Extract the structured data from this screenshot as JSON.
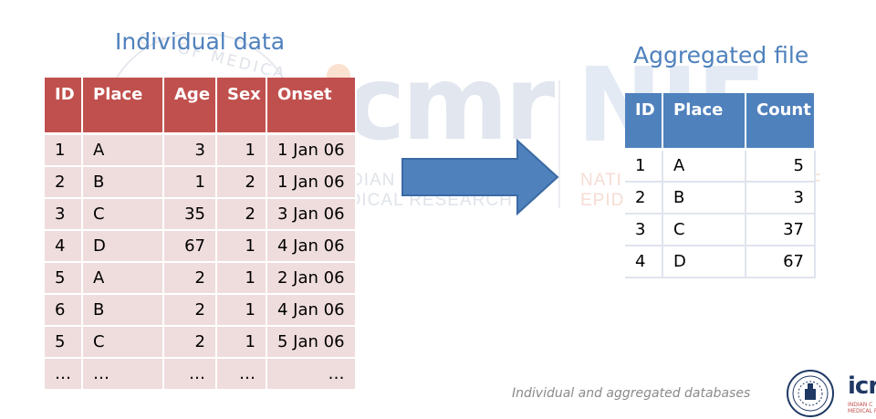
{
  "slide": {
    "title_left": "Individual data",
    "title_right": "Aggregated file",
    "caption": "Individual and aggregated databases"
  },
  "individual_table": {
    "headers": [
      "ID",
      "Place",
      "Age",
      "Sex",
      "Onset"
    ],
    "rows": [
      [
        "1",
        "A",
        "3",
        "1",
        "1 Jan 06"
      ],
      [
        "2",
        "B",
        "1",
        "2",
        "1 Jan 06"
      ],
      [
        "3",
        "C",
        "35",
        "2",
        "3 Jan 06"
      ],
      [
        "4",
        "D",
        "67",
        "1",
        "4 Jan 06"
      ],
      [
        "5",
        "A",
        "2",
        "1",
        "2 Jan 06"
      ],
      [
        "6",
        "B",
        "2",
        "1",
        "4 Jan 06"
      ],
      [
        "5",
        "C",
        "2",
        "1",
        "5 Jan 06"
      ],
      [
        "…",
        "…",
        "…",
        "…",
        "…"
      ]
    ]
  },
  "aggregated_table": {
    "headers": [
      "ID",
      "Place",
      "Count"
    ],
    "rows": [
      [
        "1",
        "A",
        "5"
      ],
      [
        "2",
        "B",
        "3"
      ],
      [
        "3",
        "C",
        "37"
      ],
      [
        "4",
        "D",
        "67"
      ]
    ]
  },
  "watermark": {
    "seal_text": "CIL OF MEDICA",
    "left_mark": "cmr",
    "left_line1": "DIAN COUNCIL O",
    "left_line2": "EDICAL RESEARCH",
    "right_mark": "NIE",
    "right_line1": "NATI",
    "right_line2": "EPID",
    "right_letter": "F"
  },
  "logo": {
    "word": "icr",
    "subtext": "INDIAN C MEDICAL R"
  },
  "colors": {
    "title": "#4f81bd",
    "individual_header": "#c0504d",
    "individual_cell": "#efdcdc",
    "aggregated_header": "#4f81bd",
    "arrow": "#4f81bd"
  }
}
